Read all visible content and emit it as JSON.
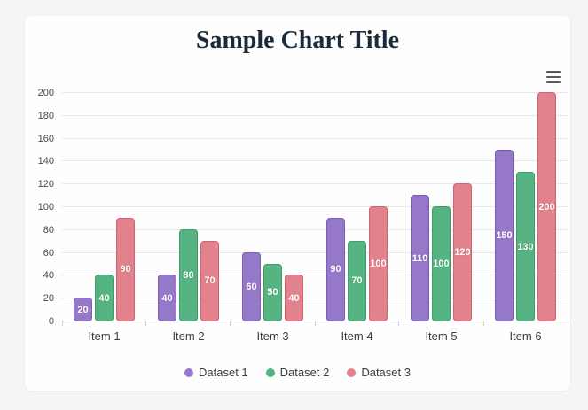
{
  "page": {
    "background_color": "#f5f5f6",
    "card_color": "#fefefe"
  },
  "chart": {
    "title": "Sample Chart Title",
    "title_color": "#1c2b3a",
    "menu_icon": "hamburger-menu-icon"
  },
  "chart_data": {
    "type": "bar",
    "title": "Sample Chart Title",
    "categories": [
      "Item 1",
      "Item 2",
      "Item 3",
      "Item 4",
      "Item 5",
      "Item 6"
    ],
    "series": [
      {
        "name": "Dataset 1",
        "color": "#9678c8",
        "border_color": "#7b5cb8",
        "values": [
          20,
          40,
          60,
          90,
          110,
          150
        ]
      },
      {
        "name": "Dataset 2",
        "color": "#55b482",
        "border_color": "#3f9c6c",
        "values": [
          40,
          80,
          50,
          70,
          100,
          130
        ]
      },
      {
        "name": "Dataset 3",
        "color": "#e1828c",
        "border_color": "#d2626e",
        "values": [
          90,
          70,
          40,
          100,
          120,
          200
        ]
      }
    ],
    "y_axis": {
      "min": 0,
      "max": 200,
      "step": 20,
      "ticks": [
        0,
        20,
        40,
        60,
        80,
        100,
        120,
        140,
        160,
        180,
        200
      ]
    },
    "xlabel": "",
    "ylabel": "",
    "grid": true,
    "value_labels": "white, bold, centered inside each bar",
    "legend": {
      "position": "bottom",
      "marker": "circle"
    }
  }
}
